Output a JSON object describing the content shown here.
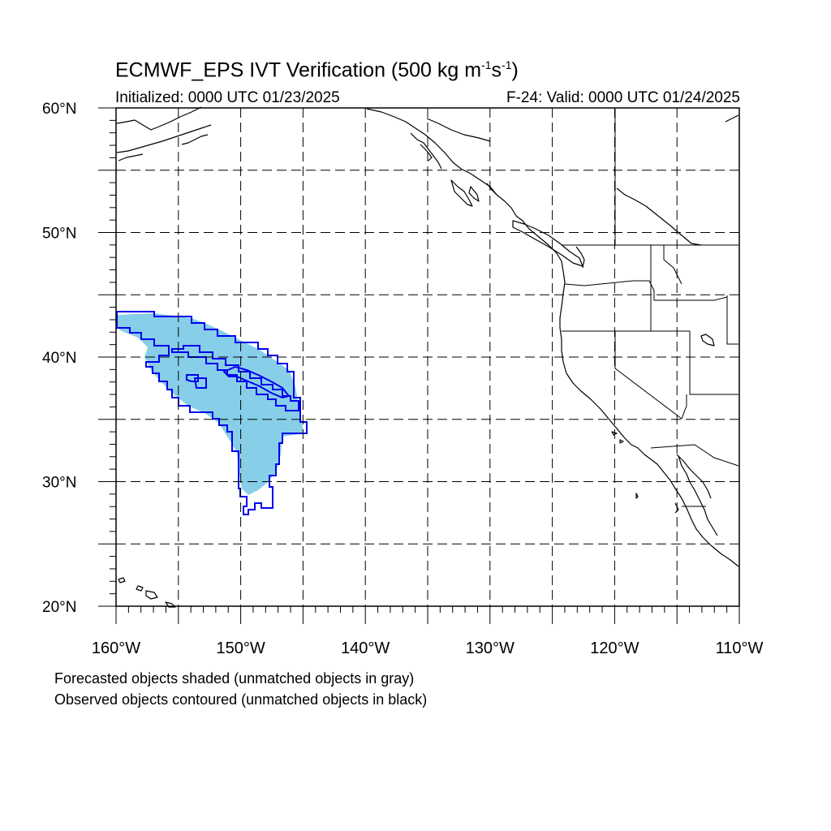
{
  "title": {
    "main": "ECMWF_EPS IVT Verification (500 kg m",
    "sup1": "-1",
    "mid": "s",
    "sup2": "-1",
    "end": ")"
  },
  "initialized": "Initialized: 0000 UTC 01/23/2025",
  "valid": "F-24: Valid: 0000 UTC 01/24/2025",
  "notes": [
    "Forecasted objects shaded (unmatched objects in gray)",
    "Observed objects contoured (unmatched objects in black)"
  ],
  "map": {
    "lon_range": [
      -160,
      -110
    ],
    "lat_range": [
      20,
      60
    ],
    "lat_labels": [
      "20°N",
      "30°N",
      "40°N",
      "50°N",
      "60°N"
    ],
    "lon_labels": [
      "160°W",
      "150°W",
      "140°W",
      "130°W",
      "120°W",
      "110°W"
    ],
    "gridlines": "dashed every 5°",
    "colors": {
      "forecast_fill": "#87CEE9",
      "observed_contour": "#0000EE",
      "coastline": "#000000"
    }
  }
}
